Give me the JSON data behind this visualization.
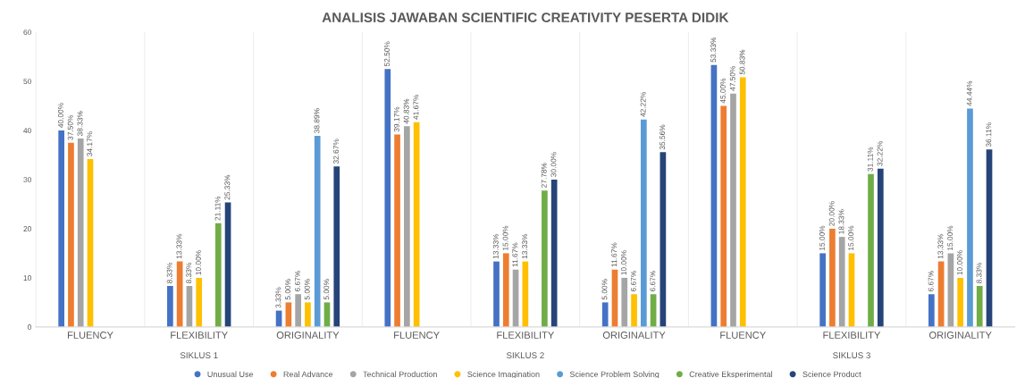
{
  "chart_data": {
    "type": "bar",
    "title": "ANALISIS JAWABAN SCIENTIFIC CREATIVITY PESERTA DIDIK",
    "categories": [
      "FLUENCY",
      "FLEXIBILITY",
      "ORIGINALITY",
      "FLUENCY",
      "FLEXIBILITY",
      "ORIGINALITY",
      "FLUENCY",
      "FLEXIBILITY",
      "ORIGINALITY"
    ],
    "annotations": [
      "SIKLUS 1",
      "SIKLUS 2",
      "SIKLUS 3"
    ],
    "ylim": [
      0,
      60
    ],
    "yticks": [
      0,
      10,
      20,
      30,
      40,
      50,
      60
    ],
    "grid": false,
    "legend": "bottom",
    "marker": "circle",
    "series": [
      {
        "name": "Unusual Use",
        "color": "#4472c4",
        "values": [
          40.0,
          8.33,
          3.33,
          52.5,
          13.33,
          5.0,
          53.33,
          15.0,
          6.67
        ],
        "value_labels": [
          "40.00%",
          "8.33%",
          "3.33%",
          "52.50%",
          "13.33%",
          "5.00%",
          "53.33%",
          "15.00%",
          "6.67%"
        ]
      },
      {
        "name": "Real Advance",
        "color": "#ed7d31",
        "values": [
          37.5,
          13.33,
          5.0,
          39.17,
          15.0,
          11.67,
          45.0,
          20.0,
          13.33
        ],
        "value_labels": [
          "37.50%",
          "13.33%",
          "5.00%",
          "39.17%",
          "15.00%",
          "11.67%",
          "45.00%",
          "20.00%",
          "13.33%"
        ]
      },
      {
        "name": "Technical Production",
        "color": "#a5a5a5",
        "values": [
          38.33,
          8.33,
          6.67,
          40.83,
          11.67,
          10.0,
          47.5,
          18.33,
          15.0
        ],
        "value_labels": [
          "38.33%",
          "8.33%",
          "6.67%",
          "40.83%",
          "11.67%",
          "10.00%",
          "47.50%",
          "18.33%",
          "15.00%"
        ]
      },
      {
        "name": "Science Imagination",
        "color": "#ffc000",
        "values": [
          34.17,
          10.0,
          5.0,
          41.67,
          13.33,
          6.67,
          50.83,
          15.0,
          10.0
        ],
        "value_labels": [
          "34.17%",
          "10.00%",
          "5.00%",
          "41.67%",
          "13.33%",
          "6.67%",
          "50.83%",
          "15.00%",
          "10.00%"
        ]
      },
      {
        "name": "Science Problem Solving",
        "color": "#5b9bd5",
        "values": [
          null,
          null,
          38.89,
          null,
          null,
          42.22,
          null,
          null,
          44.44
        ],
        "value_labels": [
          null,
          null,
          "38.89%",
          null,
          null,
          "42.22%",
          null,
          null,
          "44.44%"
        ]
      },
      {
        "name": "Creative Eksperimental",
        "color": "#70ad47",
        "values": [
          null,
          21.11,
          5.0,
          null,
          27.78,
          6.67,
          null,
          31.11,
          8.33
        ],
        "value_labels": [
          null,
          "21.11%",
          "5.00%",
          null,
          "27.78%",
          "6.67%",
          null,
          "31.11%",
          "8.33%"
        ]
      },
      {
        "name": "Science Product",
        "color": "#264478",
        "values": [
          null,
          25.33,
          32.67,
          null,
          30.0,
          35.56,
          null,
          32.22,
          36.11
        ],
        "value_labels": [
          null,
          "25.33%",
          "32.67%",
          null,
          "30.00%",
          "35.56%",
          null,
          "32.22%",
          "36.11%"
        ]
      }
    ]
  }
}
